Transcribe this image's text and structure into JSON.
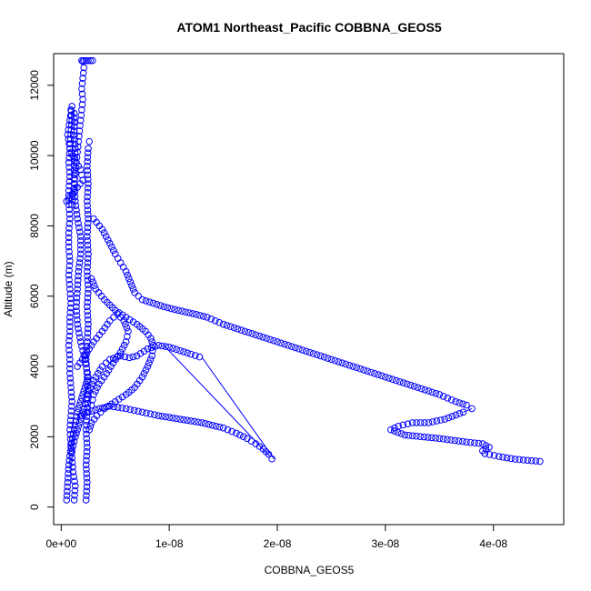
{
  "chart_data": {
    "type": "scatter",
    "title": "ATOM1 Northeast_Pacific COBBNA_GEOS5",
    "xlabel": "COBBNA_GEOS5",
    "ylabel": "Altitude (m)",
    "xlim": [
      -7e-10,
      4.65e-08
    ],
    "ylim": [
      -500,
      12900
    ],
    "x_ticks": [
      {
        "value": 0,
        "label": "0e+00"
      },
      {
        "value": 1e-08,
        "label": "1e-08"
      },
      {
        "value": 2e-08,
        "label": "2e-08"
      },
      {
        "value": 3e-08,
        "label": "3e-08"
      },
      {
        "value": 4e-08,
        "label": "4e-08"
      }
    ],
    "y_ticks": [
      {
        "value": 0,
        "label": "0"
      },
      {
        "value": 2000,
        "label": "2000"
      },
      {
        "value": 4000,
        "label": "4000"
      },
      {
        "value": 6000,
        "label": "6000"
      },
      {
        "value": 8000,
        "label": "8000"
      },
      {
        "value": 10000,
        "label": "10000"
      },
      {
        "value": 12000,
        "label": "12000"
      }
    ],
    "series": [
      {
        "values": [
          [
            1.2e-09,
            200
          ],
          [
            1.3e-09,
            600
          ],
          [
            1.1e-09,
            1000
          ],
          [
            1e-09,
            1400
          ],
          [
            9e-10,
            1800
          ],
          [
            8e-10,
            2200
          ],
          [
            9e-10,
            2600
          ],
          [
            1e-09,
            3000
          ],
          [
            9e-10,
            3400
          ],
          [
            8e-10,
            3800
          ],
          [
            8e-10,
            4200
          ],
          [
            7e-10,
            4600
          ],
          [
            8e-10,
            5000
          ],
          [
            8e-10,
            5400
          ],
          [
            9e-10,
            5800
          ],
          [
            8e-10,
            6200
          ],
          [
            7e-10,
            6600
          ],
          [
            8e-10,
            7000
          ],
          [
            7e-10,
            7400
          ],
          [
            7e-10,
            7800
          ],
          [
            8e-10,
            8200
          ],
          [
            7e-10,
            8600
          ],
          [
            7e-10,
            9000
          ],
          [
            8e-10,
            9400
          ],
          [
            7e-10,
            9800
          ],
          [
            8e-10,
            10200
          ],
          [
            9e-10,
            10600
          ],
          [
            1e-09,
            11000
          ],
          [
            9e-10,
            11300
          ]
        ]
      },
      {
        "values": [
          [
            5e-10,
            200
          ],
          [
            6e-10,
            700
          ],
          [
            7e-10,
            1200
          ],
          [
            9e-10,
            1700
          ],
          [
            1.2e-09,
            2200
          ],
          [
            1.5e-09,
            2700
          ],
          [
            2e-09,
            3200
          ],
          [
            2.5e-09,
            3700
          ],
          [
            2.2e-09,
            4200
          ],
          [
            1.8e-09,
            4700
          ],
          [
            1.5e-09,
            5200
          ],
          [
            1.4e-09,
            5700
          ],
          [
            1.5e-09,
            6200
          ],
          [
            1.6e-09,
            6700
          ],
          [
            1.8e-09,
            7200
          ],
          [
            1.8e-09,
            7700
          ],
          [
            1.5e-09,
            8200
          ],
          [
            1.3e-09,
            8700
          ],
          [
            1.2e-09,
            9200
          ],
          [
            1.2e-09,
            9700
          ],
          [
            1.3e-09,
            10200
          ],
          [
            1.2e-09,
            10700
          ],
          [
            1.2e-09,
            11200
          ]
        ]
      },
      {
        "values": [
          [
            2.3e-09,
            200
          ],
          [
            2.4e-09,
            700
          ],
          [
            2.3e-09,
            1200
          ],
          [
            2.4e-09,
            1700
          ],
          [
            2.3e-09,
            2200
          ],
          [
            2.4e-09,
            2700
          ],
          [
            2.5e-09,
            3200
          ],
          [
            2.4e-09,
            3700
          ],
          [
            2.3e-09,
            4200
          ],
          [
            2.4e-09,
            4700
          ],
          [
            2.5e-09,
            5200
          ],
          [
            2.4e-09,
            5700
          ],
          [
            2.5e-09,
            6200
          ],
          [
            2.4e-09,
            6700
          ],
          [
            2.5e-09,
            7200
          ],
          [
            2.4e-09,
            7700
          ],
          [
            2.5e-09,
            8200
          ],
          [
            2.4e-09,
            8700
          ],
          [
            2.5e-09,
            9200
          ],
          [
            2.4e-09,
            9700
          ],
          [
            2.5e-09,
            10200
          ],
          [
            2.6e-09,
            10400
          ]
        ]
      },
      {
        "values": [
          [
            2.6e-09,
            2200
          ],
          [
            2.8e-09,
            2400
          ],
          [
            3.3e-09,
            2600
          ],
          [
            4e-09,
            2800
          ],
          [
            5e-09,
            3000
          ],
          [
            6e-09,
            3200
          ],
          [
            6.8e-09,
            3400
          ],
          [
            7.5e-09,
            3700
          ],
          [
            8e-09,
            4000
          ],
          [
            8.4e-09,
            4300
          ],
          [
            8.5e-09,
            4600
          ],
          [
            8.3e-09,
            4800
          ],
          [
            7.8e-09,
            5000
          ],
          [
            7e-09,
            5200
          ],
          [
            6e-09,
            5400
          ],
          [
            5e-09,
            5600
          ],
          [
            4e-09,
            5900
          ],
          [
            3.2e-09,
            6200
          ],
          [
            2.8e-09,
            6500
          ]
        ]
      },
      {
        "values": [
          [
            1e-09,
            1600
          ],
          [
            1.3e-09,
            2000
          ],
          [
            1.7e-09,
            2400
          ],
          [
            2.1e-09,
            2800
          ],
          [
            2.4e-09,
            3200
          ],
          [
            3e-09,
            3600
          ],
          [
            3.8e-09,
            4000
          ],
          [
            4.5e-09,
            4200
          ],
          [
            5.5e-09,
            4300
          ],
          [
            6.3e-09,
            4250
          ],
          [
            7e-09,
            4300
          ],
          [
            8e-09,
            4500
          ],
          [
            9e-09,
            4600
          ],
          [
            1e-08,
            4550
          ],
          [
            1.1e-08,
            4450
          ],
          [
            1.2e-08,
            4350
          ],
          [
            1.28e-08,
            4270
          ]
        ]
      },
      {
        "values": [
          [
            1.8e-09,
            2600
          ],
          [
            2.5e-09,
            2700
          ],
          [
            3.5e-09,
            2800
          ],
          [
            4.5e-09,
            2870
          ],
          [
            6e-09,
            2800
          ],
          [
            7.5e-09,
            2700
          ],
          [
            9e-09,
            2600
          ],
          [
            1.1e-08,
            2500
          ],
          [
            1.3e-08,
            2400
          ],
          [
            1.5e-08,
            2250
          ],
          [
            1.62e-08,
            2100
          ],
          [
            1.72e-08,
            1950
          ],
          [
            1.8e-08,
            1800
          ],
          [
            1.87e-08,
            1650
          ],
          [
            1.92e-08,
            1500
          ],
          [
            1.95e-08,
            1370
          ]
        ]
      },
      {
        "values": [
          [
            3e-09,
            8200
          ],
          [
            3.8e-09,
            7900
          ],
          [
            4.5e-09,
            7500
          ],
          [
            5e-09,
            7200
          ],
          [
            5.5e-09,
            6950
          ],
          [
            6e-09,
            6700
          ],
          [
            6.4e-09,
            6400
          ],
          [
            6.8e-09,
            6100
          ],
          [
            7.5e-09,
            5900
          ],
          [
            8.5e-09,
            5800
          ],
          [
            9.5e-09,
            5700
          ],
          [
            1.05e-08,
            5620
          ],
          [
            1.15e-08,
            5550
          ],
          [
            1.25e-08,
            5480
          ],
          [
            1.35e-08,
            5400
          ],
          [
            1.5e-08,
            5200
          ],
          [
            1.7e-08,
            5000
          ],
          [
            1.9e-08,
            4800
          ],
          [
            2.1e-08,
            4600
          ],
          [
            2.3e-08,
            4400
          ],
          [
            2.5e-08,
            4200
          ],
          [
            2.7e-08,
            4000
          ],
          [
            2.9e-08,
            3800
          ],
          [
            3.1e-08,
            3600
          ],
          [
            3.3e-08,
            3400
          ],
          [
            3.5e-08,
            3200
          ],
          [
            3.65e-08,
            3000
          ],
          [
            3.75e-08,
            2900
          ],
          [
            3.8e-08,
            2800
          ]
        ]
      },
      {
        "values": [
          [
            3.72e-08,
            2700
          ],
          [
            3.55e-08,
            2500
          ],
          [
            3.4e-08,
            2400
          ],
          [
            3.25e-08,
            2400
          ],
          [
            3.12e-08,
            2300
          ],
          [
            3.05e-08,
            2200
          ],
          [
            3.18e-08,
            2050
          ],
          [
            3.5e-08,
            1950
          ],
          [
            3.75e-08,
            1850
          ],
          [
            3.9e-08,
            1800
          ],
          [
            3.96e-08,
            1700
          ],
          [
            3.9e-08,
            1600
          ],
          [
            3.92e-08,
            1520
          ],
          [
            4.05e-08,
            1440
          ],
          [
            4.2e-08,
            1360
          ],
          [
            4.43e-08,
            1300
          ]
        ]
      },
      {
        "values": [
          [
            2e-09,
            12680
          ],
          [
            2.1e-09,
            12500
          ],
          [
            2e-09,
            12200
          ],
          [
            1.9e-09,
            11900
          ],
          [
            2e-09,
            11600
          ],
          [
            1.9e-09,
            11300
          ],
          [
            1.8e-09,
            11000
          ],
          [
            1.7e-09,
            10700
          ],
          [
            1.6e-09,
            10400
          ],
          [
            1.5e-09,
            10100
          ],
          [
            1.4e-09,
            9800
          ],
          [
            1.3e-09,
            9500
          ],
          [
            1.2e-09,
            9200
          ],
          [
            1.1e-09,
            8900
          ],
          [
            1e-09,
            8600
          ]
        ]
      },
      {
        "values": [
          [
            1.9e-09,
            12700
          ],
          [
            2.1e-09,
            12700
          ],
          [
            2.3e-09,
            12700
          ],
          [
            2.5e-09,
            12700
          ],
          [
            2.7e-09,
            12700
          ],
          [
            2.9e-09,
            12700
          ]
        ]
      },
      {
        "values": [
          [
            1.5e-09,
            4000
          ],
          [
            2.2e-09,
            4300
          ],
          [
            3e-09,
            4700
          ],
          [
            3.8e-09,
            5000
          ],
          [
            4.5e-09,
            5300
          ],
          [
            5.2e-09,
            5500
          ],
          [
            5.8e-09,
            5300
          ],
          [
            6.2e-09,
            5000
          ],
          [
            6e-09,
            4700
          ],
          [
            5.5e-09,
            4400
          ],
          [
            4.8e-09,
            4100
          ],
          [
            4.2e-09,
            3800
          ],
          [
            3.5e-09,
            3500
          ],
          [
            3e-09,
            3200
          ],
          [
            2.8e-09,
            2900
          ]
        ]
      },
      {
        "values": [
          [
            5e-10,
            8700
          ],
          [
            1e-09,
            8900
          ],
          [
            1.5e-09,
            9100
          ],
          [
            2e-09,
            9300
          ],
          [
            1.8e-09,
            9600
          ],
          [
            1.2e-09,
            9900
          ],
          [
            8e-10,
            10200
          ],
          [
            6e-10,
            10600
          ],
          [
            8e-10,
            11000
          ],
          [
            1e-09,
            11400
          ]
        ]
      }
    ],
    "connector_lines": [
      [
        [
          1.3e-08,
          4270
        ],
        [
          1.97e-08,
          1370
        ]
      ],
      [
        [
          9.5e-09,
          4600
        ],
        [
          1.93e-08,
          1450
        ]
      ],
      [
        [
          3.8e-08,
          2800
        ],
        [
          3.72e-08,
          2700
        ]
      ]
    ],
    "grid": false,
    "legend": "none"
  }
}
